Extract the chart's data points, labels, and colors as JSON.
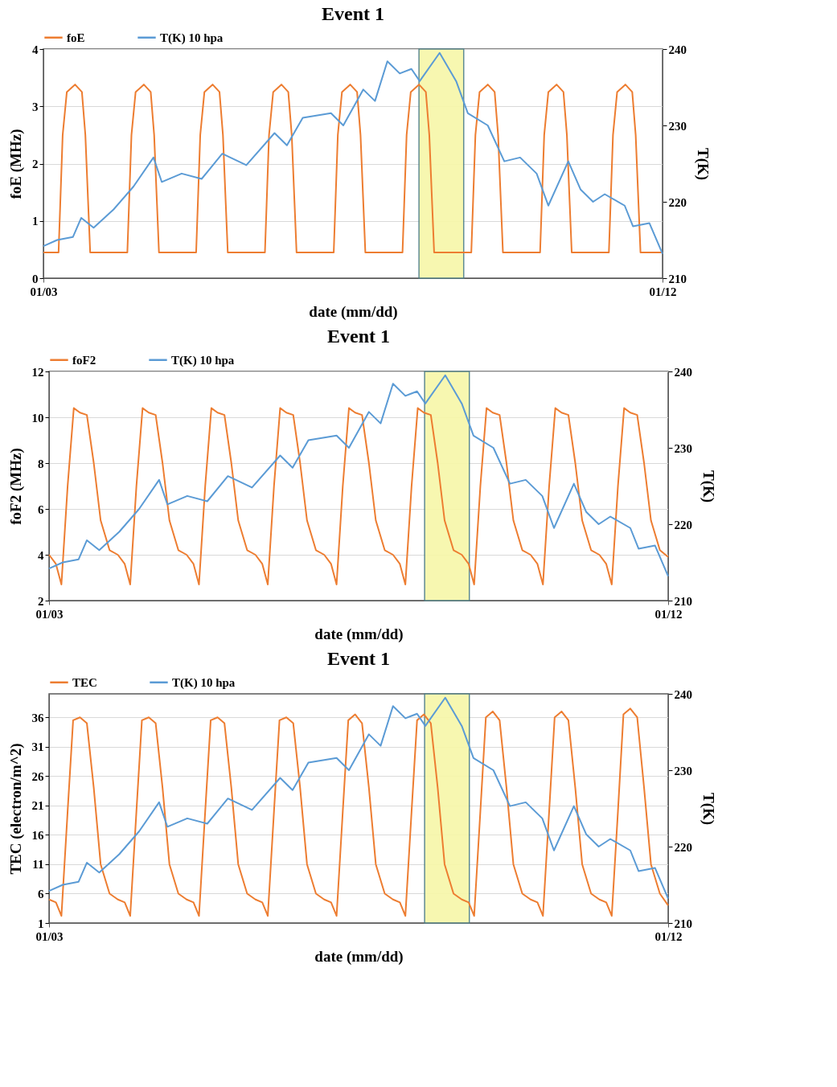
{
  "chart_data": [
    {
      "type": "line",
      "title": "Event 1",
      "xlabel": "date (mm/dd)",
      "ylabel": "foE (MHz)",
      "y2label": "T(K)",
      "xlim": [
        "--01-03",
        "--01-12"
      ],
      "xticks": [
        {
          "value": "--01-03",
          "label": "01/03"
        },
        {
          "value": "--01-12",
          "label": "01/12"
        }
      ],
      "ylim": [
        0,
        4
      ],
      "yticks": [
        0,
        1,
        2,
        3,
        4
      ],
      "y2lim": [
        210,
        240
      ],
      "y2ticks": [
        210,
        220,
        230,
        240
      ],
      "grid": "y",
      "legend": "top",
      "bands": [
        {
          "axis": "x",
          "from": "--01-08T11:02",
          "to": "--01-09T02:38",
          "color": "#f7f7a8"
        }
      ],
      "series": [
        {
          "name": "foE",
          "color": "#ed7d31",
          "x": [
            "--01-03T00:00",
            "--01-03T05:17",
            "--01-03T06:43",
            "--01-03T08:10",
            "--01-03T11:02",
            "--01-03T13:26",
            "--01-03T14:38",
            "--01-03T16:19",
            "--01-04T05:17",
            "--01-04T06:43",
            "--01-04T08:10",
            "--01-04T11:02",
            "--01-04T13:26",
            "--01-04T14:38",
            "--01-04T16:19",
            "--01-05T05:17",
            "--01-05T06:43",
            "--01-05T08:10",
            "--01-05T11:02",
            "--01-05T13:26",
            "--01-05T14:38",
            "--01-05T16:19",
            "--01-06T05:17",
            "--01-06T06:43",
            "--01-06T08:10",
            "--01-06T11:02",
            "--01-06T13:26",
            "--01-06T14:38",
            "--01-06T16:19",
            "--01-07T05:17",
            "--01-07T06:43",
            "--01-07T08:10",
            "--01-07T11:02",
            "--01-07T13:26",
            "--01-07T14:38",
            "--01-07T16:19",
            "--01-08T05:17",
            "--01-08T06:43",
            "--01-08T08:10",
            "--01-08T11:02",
            "--01-08T13:26",
            "--01-08T14:38",
            "--01-08T16:19",
            "--01-09T05:17",
            "--01-09T06:43",
            "--01-09T08:10",
            "--01-09T11:02",
            "--01-09T13:26",
            "--01-09T14:38",
            "--01-09T16:19",
            "--01-10T05:17",
            "--01-10T06:43",
            "--01-10T08:10",
            "--01-10T11:02",
            "--01-10T13:26",
            "--01-10T14:38",
            "--01-10T16:19",
            "--01-11T05:17",
            "--01-11T06:43",
            "--01-11T08:10",
            "--01-11T11:02",
            "--01-11T13:26",
            "--01-11T14:38",
            "--01-11T16:19",
            "--01-12T00:00"
          ],
          "values": [
            0.45,
            0.45,
            2.5,
            3.25,
            3.38,
            3.25,
            2.5,
            0.45,
            0.45,
            2.5,
            3.25,
            3.38,
            3.25,
            2.5,
            0.45,
            0.45,
            2.5,
            3.25,
            3.38,
            3.25,
            2.5,
            0.45,
            0.45,
            2.5,
            3.25,
            3.38,
            3.25,
            2.5,
            0.45,
            0.45,
            2.5,
            3.25,
            3.38,
            3.25,
            2.5,
            0.45,
            0.45,
            2.5,
            3.25,
            3.38,
            3.25,
            2.5,
            0.45,
            0.45,
            2.5,
            3.25,
            3.38,
            3.25,
            2.5,
            0.45,
            0.45,
            2.5,
            3.25,
            3.38,
            3.25,
            2.5,
            0.45,
            0.45,
            2.5,
            3.25,
            3.38,
            3.25,
            2.5,
            0.45,
            0.45
          ]
        },
        {
          "name": "T(K) 10 hpa",
          "color": "#5b9bd5",
          "axis": "y2",
          "x": [
            "--01-03T00:00",
            "--01-03T04:48",
            "--01-03T10:19",
            "--01-03T13:12",
            "--01-03T17:31",
            "--01-04T00:29",
            "--01-04T07:26",
            "--01-04T14:24",
            "--01-04T17:17",
            "--01-05T00:14",
            "--01-05T07:12",
            "--01-05T14:24",
            "--01-05T22:48",
            "--01-06T08:38",
            "--01-06T12:58",
            "--01-06T18:29",
            "--01-07T04:19",
            "--01-07T08:38",
            "--01-07T15:36",
            "--01-07T19:41",
            "--01-08T00:00",
            "--01-08T04:19",
            "--01-08T08:24",
            "--01-08T11:17",
            "--01-08T18:14",
            "--01-09T00:00",
            "--01-09T04:05",
            "--01-09T11:02",
            "--01-09T16:48",
            "--01-09T22:19",
            "--01-10T04:05",
            "--01-10T08:10",
            "--01-10T15:07",
            "--01-10T19:26",
            "--01-10T23:46",
            "--01-11T03:50",
            "--01-11T10:48",
            "--01-11T13:41",
            "--01-11T19:26",
            "--01-12T00:00"
          ],
          "values": [
            214.2,
            215,
            215.4,
            217.9,
            216.6,
            219,
            222,
            225.8,
            222.6,
            223.7,
            223,
            226.3,
            224.8,
            229,
            227.4,
            231,
            231.6,
            230,
            234.7,
            233.2,
            238.4,
            236.8,
            237.4,
            235.8,
            239.5,
            235.8,
            231.6,
            230,
            225.3,
            225.8,
            223.7,
            219.5,
            225.3,
            221.6,
            220,
            221,
            219.5,
            216.8,
            217.2,
            213.2
          ]
        }
      ]
    },
    {
      "type": "line",
      "title": "Event 1",
      "xlabel": "date (mm/dd)",
      "ylabel": "foF2 (MHz)",
      "y2label": "T(K)",
      "xlim": [
        "--01-03",
        "--01-12"
      ],
      "xticks": [
        {
          "value": "--01-03",
          "label": "01/03"
        },
        {
          "value": "--01-12",
          "label": "01/12"
        }
      ],
      "ylim": [
        2,
        12
      ],
      "yticks": [
        2,
        4,
        6,
        8,
        10,
        12
      ],
      "y2lim": [
        210,
        240
      ],
      "y2ticks": [
        210,
        220,
        230,
        240
      ],
      "grid": "y",
      "legend": "top",
      "bands": [
        {
          "axis": "x",
          "from": "--01-08T11:02",
          "to": "--01-09T02:38",
          "color": "#f7f7a8"
        }
      ],
      "series": [
        {
          "name": "foF2",
          "color": "#ed7d31",
          "x": [
            "--01-03T00:00",
            "--01-03T02:24",
            "--01-03T04:19",
            "--01-03T06:29",
            "--01-03T08:38",
            "--01-03T10:48",
            "--01-03T13:12",
            "--01-03T15:36",
            "--01-03T18:00",
            "--01-03T21:07",
            "--01-04T00:00",
            "--01-04T02:24",
            "--01-04T04:19",
            "--01-04T06:29",
            "--01-04T08:38",
            "--01-04T10:48",
            "--01-04T13:12",
            "--01-04T15:36",
            "--01-04T18:00",
            "--01-04T21:07",
            "--01-05T00:00",
            "--01-05T02:24",
            "--01-05T04:19",
            "--01-05T06:29",
            "--01-05T08:38",
            "--01-05T10:48",
            "--01-05T13:12",
            "--01-05T15:36",
            "--01-05T18:00",
            "--01-05T21:07",
            "--01-06T00:00",
            "--01-06T02:24",
            "--01-06T04:19",
            "--01-06T06:29",
            "--01-06T08:38",
            "--01-06T10:48",
            "--01-06T13:12",
            "--01-06T15:36",
            "--01-06T18:00",
            "--01-06T21:07",
            "--01-07T00:00",
            "--01-07T02:24",
            "--01-07T04:19",
            "--01-07T06:29",
            "--01-07T08:38",
            "--01-07T10:48",
            "--01-07T13:12",
            "--01-07T15:36",
            "--01-07T18:00",
            "--01-07T21:07",
            "--01-08T00:00",
            "--01-08T02:24",
            "--01-08T04:19",
            "--01-08T06:29",
            "--01-08T08:38",
            "--01-08T10:48",
            "--01-08T13:12",
            "--01-08T15:36",
            "--01-08T18:00",
            "--01-08T21:07",
            "--01-09T00:00",
            "--01-09T02:24",
            "--01-09T04:19",
            "--01-09T06:29",
            "--01-09T08:38",
            "--01-09T10:48",
            "--01-09T13:12",
            "--01-09T15:36",
            "--01-09T18:00",
            "--01-09T21:07",
            "--01-10T00:00",
            "--01-10T02:24",
            "--01-10T04:19",
            "--01-10T06:29",
            "--01-10T08:38",
            "--01-10T10:48",
            "--01-10T13:12",
            "--01-10T15:36",
            "--01-10T18:00",
            "--01-10T21:07",
            "--01-11T00:00",
            "--01-11T02:24",
            "--01-11T04:19",
            "--01-11T06:29",
            "--01-11T08:38",
            "--01-11T10:48",
            "--01-11T13:12",
            "--01-11T15:36",
            "--01-11T18:00",
            "--01-11T21:07",
            "--01-12T00:00"
          ],
          "values": [
            4.0,
            3.6,
            2.7,
            7.0,
            10.4,
            10.2,
            10.1,
            8.0,
            5.5,
            4.2,
            4.0,
            3.6,
            2.7,
            7.0,
            10.4,
            10.2,
            10.1,
            8.0,
            5.5,
            4.2,
            4.0,
            3.6,
            2.7,
            7.0,
            10.4,
            10.2,
            10.1,
            8.0,
            5.5,
            4.2,
            4.0,
            3.6,
            2.7,
            7.0,
            10.4,
            10.2,
            10.1,
            8.0,
            5.5,
            4.2,
            4.0,
            3.6,
            2.7,
            7.0,
            10.4,
            10.2,
            10.1,
            8.0,
            5.5,
            4.2,
            4.0,
            3.6,
            2.7,
            7.0,
            10.4,
            10.2,
            10.1,
            8.0,
            5.5,
            4.2,
            4.0,
            3.6,
            2.7,
            7.0,
            10.4,
            10.2,
            10.1,
            8.0,
            5.5,
            4.2,
            4.0,
            3.6,
            2.7,
            7.0,
            10.4,
            10.2,
            10.1,
            8.0,
            5.5,
            4.2,
            4.0,
            3.6,
            2.7,
            7.0,
            10.4,
            10.2,
            10.1,
            8.0,
            5.5,
            4.2,
            3.9
          ]
        },
        {
          "name": "T(K) 10 hpa",
          "color": "#5b9bd5",
          "axis": "y2",
          "x": [
            "--01-03T00:00",
            "--01-03T04:48",
            "--01-03T10:19",
            "--01-03T13:12",
            "--01-03T17:31",
            "--01-04T00:29",
            "--01-04T07:26",
            "--01-04T14:24",
            "--01-04T17:17",
            "--01-05T00:14",
            "--01-05T07:12",
            "--01-05T14:24",
            "--01-05T22:48",
            "--01-06T08:38",
            "--01-06T12:58",
            "--01-06T18:29",
            "--01-07T04:19",
            "--01-07T08:38",
            "--01-07T15:36",
            "--01-07T19:41",
            "--01-08T00:00",
            "--01-08T04:19",
            "--01-08T08:24",
            "--01-08T11:17",
            "--01-08T18:14",
            "--01-09T00:00",
            "--01-09T04:05",
            "--01-09T11:02",
            "--01-09T16:48",
            "--01-09T22:19",
            "--01-10T04:05",
            "--01-10T08:10",
            "--01-10T15:07",
            "--01-10T19:26",
            "--01-10T23:46",
            "--01-11T03:50",
            "--01-11T10:48",
            "--01-11T13:41",
            "--01-11T19:26",
            "--01-12T00:00"
          ],
          "values": [
            214.2,
            215,
            215.4,
            217.9,
            216.6,
            219,
            222,
            225.8,
            222.6,
            223.7,
            223,
            226.3,
            224.8,
            229,
            227.4,
            231,
            231.6,
            230,
            234.7,
            233.2,
            238.4,
            236.8,
            237.4,
            235.8,
            239.5,
            235.8,
            231.6,
            230,
            225.3,
            225.8,
            223.7,
            219.5,
            225.3,
            221.6,
            220,
            221,
            219.5,
            216.8,
            217.2,
            213.2
          ]
        }
      ]
    },
    {
      "type": "line",
      "title": "Event 1",
      "xlabel": "date (mm/dd)",
      "ylabel": "TEC (electron/m^2)",
      "y2label": "T(K)",
      "xlim": [
        "--01-03",
        "--01-12"
      ],
      "xticks": [
        {
          "value": "--01-03",
          "label": "01/03"
        },
        {
          "value": "--01-12",
          "label": "01/12"
        }
      ],
      "ylim": [
        1,
        40
      ],
      "yticks": [
        1,
        6,
        11,
        16,
        21,
        26,
        31,
        36
      ],
      "y2lim": [
        210,
        240
      ],
      "y2ticks": [
        210,
        220,
        230,
        240
      ],
      "grid": "y",
      "legend": "top",
      "bands": [
        {
          "axis": "x",
          "from": "--01-08T11:02",
          "to": "--01-09T02:38",
          "color": "#f7f7a8"
        }
      ],
      "series": [
        {
          "name": "TEC",
          "color": "#ed7d31",
          "x": [
            "--01-03T00:00",
            "--01-03T02:24",
            "--01-03T04:19",
            "--01-03T06:29",
            "--01-03T08:24",
            "--01-03T10:48",
            "--01-03T13:12",
            "--01-03T15:36",
            "--01-03T18:00",
            "--01-03T21:07",
            "--01-04T00:00",
            "--01-04T02:24",
            "--01-04T04:19",
            "--01-04T06:29",
            "--01-04T08:24",
            "--01-04T10:48",
            "--01-04T13:12",
            "--01-04T15:36",
            "--01-04T18:00",
            "--01-04T21:07",
            "--01-05T00:00",
            "--01-05T02:24",
            "--01-05T04:19",
            "--01-05T06:29",
            "--01-05T08:24",
            "--01-05T10:48",
            "--01-05T13:12",
            "--01-05T15:36",
            "--01-05T18:00",
            "--01-05T21:07",
            "--01-06T00:00",
            "--01-06T02:24",
            "--01-06T04:19",
            "--01-06T06:29",
            "--01-06T08:24",
            "--01-06T10:48",
            "--01-06T13:12",
            "--01-06T15:36",
            "--01-06T18:00",
            "--01-06T21:07",
            "--01-07T00:00",
            "--01-07T02:24",
            "--01-07T04:19",
            "--01-07T06:29",
            "--01-07T08:24",
            "--01-07T10:48",
            "--01-07T13:12",
            "--01-07T15:36",
            "--01-07T18:00",
            "--01-07T21:07",
            "--01-08T00:00",
            "--01-08T02:24",
            "--01-08T04:19",
            "--01-08T06:29",
            "--01-08T08:24",
            "--01-08T10:48",
            "--01-08T13:12",
            "--01-08T15:36",
            "--01-08T18:00",
            "--01-08T21:07",
            "--01-09T00:00",
            "--01-09T02:24",
            "--01-09T04:19",
            "--01-09T06:29",
            "--01-09T08:24",
            "--01-09T10:48",
            "--01-09T13:12",
            "--01-09T15:36",
            "--01-09T18:00",
            "--01-09T21:07",
            "--01-10T00:00",
            "--01-10T02:24",
            "--01-10T04:19",
            "--01-10T06:29",
            "--01-10T08:24",
            "--01-10T10:48",
            "--01-10T13:12",
            "--01-10T15:36",
            "--01-10T18:00",
            "--01-10T21:07",
            "--01-11T00:00",
            "--01-11T02:24",
            "--01-11T04:19",
            "--01-11T06:29",
            "--01-11T08:24",
            "--01-11T10:48",
            "--01-11T13:12",
            "--01-11T15:36",
            "--01-11T18:00",
            "--01-11T21:07",
            "--01-12T00:00"
          ],
          "values": [
            5,
            4.5,
            2.2,
            20,
            35.5,
            36,
            35,
            24,
            11,
            6,
            5,
            4.5,
            2.2,
            20,
            35.5,
            36,
            35,
            24,
            11,
            6,
            5,
            4.5,
            2.2,
            20,
            35.5,
            36,
            35,
            24,
            11,
            6,
            5,
            4.5,
            2.2,
            20,
            35.5,
            36,
            35,
            24,
            11,
            6,
            5,
            4.5,
            2.2,
            20,
            35.5,
            36.5,
            35,
            24,
            11,
            6,
            5,
            4.5,
            2.2,
            20,
            35.5,
            36.5,
            35,
            24,
            11,
            6,
            5,
            4.5,
            2.2,
            20,
            36,
            37,
            35.5,
            24,
            11,
            6,
            5,
            4.5,
            2.2,
            20,
            36,
            37,
            35.5,
            24,
            11,
            6,
            5,
            4.5,
            2.2,
            20,
            36.5,
            37.5,
            36,
            24,
            11,
            6,
            4
          ]
        },
        {
          "name": "T(K) 10 hpa",
          "color": "#5b9bd5",
          "axis": "y2",
          "x": [
            "--01-03T00:00",
            "--01-03T04:48",
            "--01-03T10:19",
            "--01-03T13:12",
            "--01-03T17:31",
            "--01-04T00:29",
            "--01-04T07:26",
            "--01-04T14:24",
            "--01-04T17:17",
            "--01-05T00:14",
            "--01-05T07:12",
            "--01-05T14:24",
            "--01-05T22:48",
            "--01-06T08:38",
            "--01-06T12:58",
            "--01-06T18:29",
            "--01-07T04:19",
            "--01-07T08:38",
            "--01-07T15:36",
            "--01-07T19:41",
            "--01-08T00:00",
            "--01-08T04:19",
            "--01-08T08:24",
            "--01-08T11:17",
            "--01-08T18:14",
            "--01-09T00:00",
            "--01-09T04:05",
            "--01-09T11:02",
            "--01-09T16:48",
            "--01-09T22:19",
            "--01-10T04:05",
            "--01-10T08:10",
            "--01-10T15:07",
            "--01-10T19:26",
            "--01-10T23:46",
            "--01-11T03:50",
            "--01-11T10:48",
            "--01-11T13:41",
            "--01-11T19:26",
            "--01-12T00:00"
          ],
          "values": [
            214.2,
            215,
            215.4,
            217.9,
            216.6,
            219,
            222,
            225.8,
            222.6,
            223.7,
            223,
            226.3,
            224.8,
            229,
            227.4,
            231,
            231.6,
            230,
            234.7,
            233.2,
            238.4,
            236.8,
            237.4,
            235.8,
            239.5,
            235.8,
            231.6,
            230,
            225.3,
            225.8,
            223.7,
            219.5,
            225.3,
            221.6,
            220,
            221,
            219.5,
            216.8,
            217.2,
            213.2
          ]
        }
      ]
    }
  ]
}
